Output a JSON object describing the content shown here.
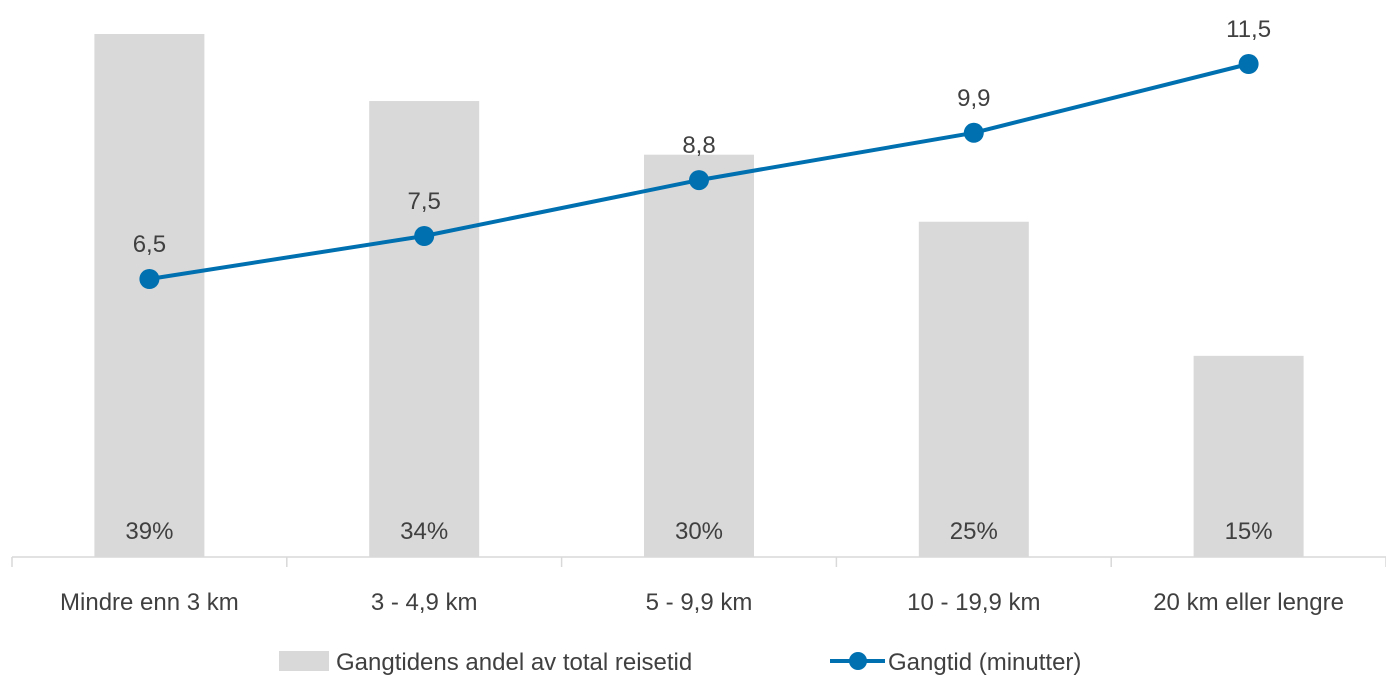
{
  "chart_data": {
    "type": "bar",
    "categories": [
      "Mindre enn 3 km",
      "3 - 4,9 km",
      "5 - 9,9 km",
      "10 - 19,9 km",
      "20 km eller lengre"
    ],
    "series": [
      {
        "name": "Gangtidens andel av total reisetid",
        "type": "bar",
        "values": [
          39,
          34,
          30,
          25,
          15
        ],
        "labels": [
          "39%",
          "34%",
          "30%",
          "25%",
          "15%"
        ],
        "color": "#d9d9d9",
        "axis": "primary",
        "ylim": [
          0,
          40
        ]
      },
      {
        "name": "Gangtid (minutter)",
        "type": "line",
        "values": [
          6.5,
          7.5,
          8.8,
          9.9,
          11.5
        ],
        "labels": [
          "6,5",
          "7,5",
          "8,8",
          "9,9",
          "11,5"
        ],
        "color": "#0070b0",
        "axis": "secondary",
        "ylim": [
          0,
          12
        ]
      }
    ],
    "legend_position": "bottom",
    "grid": false
  }
}
